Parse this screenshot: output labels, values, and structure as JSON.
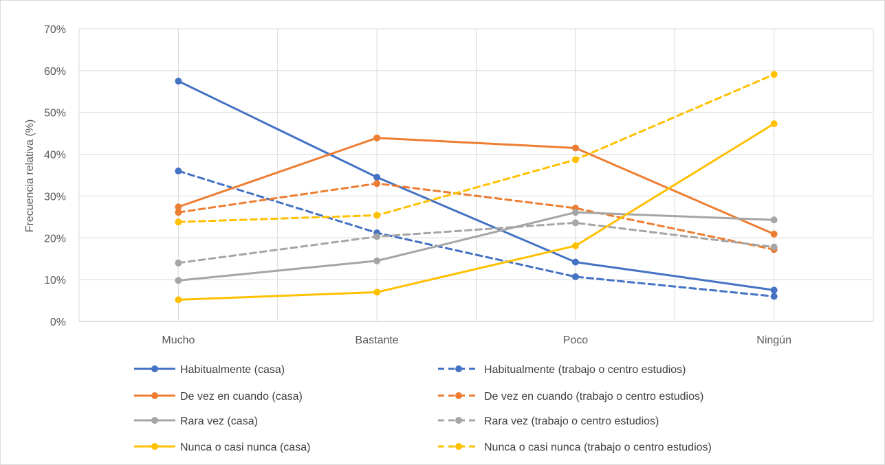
{
  "chart_data": {
    "type": "line",
    "title": "",
    "xlabel": "",
    "ylabel": "Frecuencia relativa (%)",
    "categories": [
      "Mucho",
      "Bastante",
      "Poco",
      "Ningún"
    ],
    "ylim": [
      0,
      70
    ],
    "yticks": [
      0,
      10,
      20,
      30,
      40,
      50,
      60,
      70
    ],
    "ytick_labels": [
      "0%",
      "10%",
      "20%",
      "30%",
      "40%",
      "50%",
      "60%",
      "70%"
    ],
    "grid": true,
    "legend_position": "bottom",
    "series": [
      {
        "name": "Habitualmente (casa)",
        "values": [
          57.5,
          34.5,
          14.2,
          7.5
        ],
        "color": "#4472C4",
        "dashed": false
      },
      {
        "name": "Habitualmente (trabajo o centro estudios)",
        "values": [
          36.0,
          21.2,
          10.7,
          6.0
        ],
        "color": "#4472C4",
        "dashed": true
      },
      {
        "name": "De vez en cuando (casa)",
        "values": [
          27.4,
          43.9,
          41.5,
          20.9
        ],
        "color": "#ED7D31",
        "dashed": false
      },
      {
        "name": "De vez en cuando (trabajo o centro estudios)",
        "values": [
          26.1,
          33.0,
          27.1,
          17.2
        ],
        "color": "#ED7D31",
        "dashed": true
      },
      {
        "name": "Rara vez (casa)",
        "values": [
          9.8,
          14.5,
          26.1,
          24.3
        ],
        "color": "#A5A5A5",
        "dashed": false
      },
      {
        "name": "Rara vez (trabajo o centro estudios)",
        "values": [
          14.0,
          20.3,
          23.6,
          17.8
        ],
        "color": "#A5A5A5",
        "dashed": true
      },
      {
        "name": "Nunca o casi nunca (casa)",
        "values": [
          5.2,
          7.0,
          18.1,
          47.3
        ],
        "color": "#FFC000",
        "dashed": false
      },
      {
        "name": "Nunca o casi nunca (trabajo o centro estudios)",
        "values": [
          23.8,
          25.4,
          38.7,
          59.1
        ],
        "color": "#FFC000",
        "dashed": true
      }
    ]
  }
}
